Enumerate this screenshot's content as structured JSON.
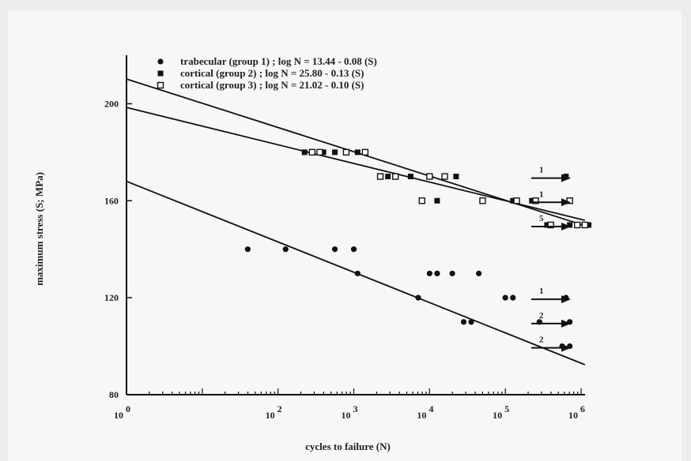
{
  "chart_data": {
    "type": "scatter",
    "title": "",
    "xlabel": "cycles to failure (N)",
    "ylabel": "maximum stress (S; MPa)",
    "xscale": "log",
    "xlim_log10": [
      0,
      6
    ],
    "ylim": [
      80,
      220
    ],
    "x_ticks": [
      {
        "base": "10",
        "exp": "0"
      },
      {
        "base": "10",
        "exp": "2"
      },
      {
        "base": "10",
        "exp": "3"
      },
      {
        "base": "10",
        "exp": "4"
      },
      {
        "base": "10",
        "exp": "5"
      },
      {
        "base": "10",
        "exp": "6"
      }
    ],
    "x_tick_log10": [
      0,
      2,
      3,
      4,
      5,
      6
    ],
    "y_ticks": [
      80,
      120,
      160,
      200
    ],
    "grid": false,
    "legend_position": "top",
    "series": [
      {
        "name": "trabecular (group 1) ; log N = 13.44 - 0.08 (S)",
        "marker": "filled-circle",
        "fit": {
          "intercept": 13.44,
          "slope": 0.08
        },
        "points_log10N_S": [
          [
            1.6,
            140
          ],
          [
            2.1,
            140
          ],
          [
            2.75,
            140
          ],
          [
            3.0,
            140
          ],
          [
            3.05,
            130
          ],
          [
            3.85,
            120
          ],
          [
            4.0,
            130
          ],
          [
            4.1,
            130
          ],
          [
            4.3,
            130
          ],
          [
            4.45,
            110
          ],
          [
            4.55,
            110
          ],
          [
            4.65,
            130
          ],
          [
            5.0,
            120
          ],
          [
            5.1,
            120
          ],
          [
            5.45,
            110
          ],
          [
            5.8,
            120
          ],
          [
            5.85,
            110
          ],
          [
            5.75,
            100
          ],
          [
            5.85,
            100
          ]
        ]
      },
      {
        "name": "cortical (group 2) ; log N = 25.80 - 0.13 (S)",
        "marker": "filled-square",
        "fit": {
          "intercept": 25.8,
          "slope": 0.13
        },
        "points_log10N_S": [
          [
            2.35,
            180
          ],
          [
            2.6,
            180
          ],
          [
            2.75,
            180
          ],
          [
            3.05,
            180
          ],
          [
            3.45,
            170
          ],
          [
            3.75,
            170
          ],
          [
            4.1,
            160
          ],
          [
            4.35,
            170
          ],
          [
            5.1,
            160
          ],
          [
            5.35,
            160
          ],
          [
            5.55,
            150
          ],
          [
            5.8,
            170
          ],
          [
            5.85,
            150
          ],
          [
            6.1,
            150
          ]
        ]
      },
      {
        "name": "cortical (group 3) ; log N = 21.02 - 0.10 (S)",
        "marker": "open-square",
        "fit": {
          "intercept": 21.02,
          "slope": 0.1
        },
        "points_log10N_S": [
          [
            2.45,
            180
          ],
          [
            2.55,
            180
          ],
          [
            2.9,
            180
          ],
          [
            3.15,
            180
          ],
          [
            3.35,
            170
          ],
          [
            3.55,
            170
          ],
          [
            3.9,
            160
          ],
          [
            4.0,
            170
          ],
          [
            4.2,
            170
          ],
          [
            4.7,
            160
          ],
          [
            5.15,
            160
          ],
          [
            5.4,
            160
          ],
          [
            5.6,
            150
          ],
          [
            5.85,
            160
          ],
          [
            5.95,
            150
          ],
          [
            6.05,
            150
          ]
        ]
      }
    ],
    "runouts": [
      {
        "label": "1",
        "S": 170
      },
      {
        "label": "1",
        "S": 160
      },
      {
        "label": "5",
        "S": 150
      },
      {
        "label": "1",
        "S": 120
      },
      {
        "label": "2",
        "S": 110
      },
      {
        "label": "2",
        "S": 100
      }
    ]
  }
}
